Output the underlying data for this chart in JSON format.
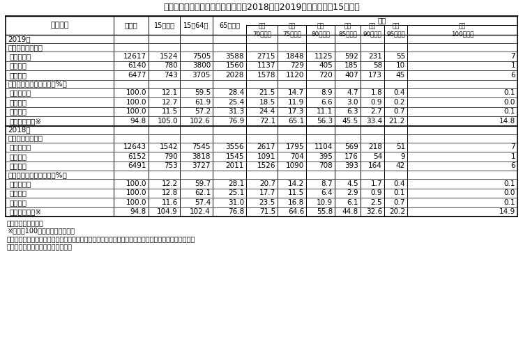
{
  "title": "表１　年齢３区分別人口及び割合（2018年、2019年）－　９月15日現在",
  "bg_color": "#ffffff",
  "text_color": "#000000",
  "sections": [
    {
      "year_label": "2019年",
      "jinkou_rows": [
        {
          "label": "　男女計",
          "values": [
            "12617",
            "1524",
            "7505",
            "3588",
            "2715",
            "1848",
            "1125",
            "592",
            "231",
            "55",
            "7"
          ]
        },
        {
          "label": "　　男",
          "values": [
            "6140",
            "780",
            "3800",
            "1560",
            "1137",
            "729",
            "405",
            "185",
            "58",
            "10",
            "1"
          ]
        },
        {
          "label": "　　女",
          "values": [
            "6477",
            "743",
            "3705",
            "2028",
            "1578",
            "1120",
            "720",
            "407",
            "173",
            "45",
            "6"
          ]
        }
      ],
      "wariai_rows": [
        {
          "label": "　男女計",
          "values": [
            "100.0",
            "12.1",
            "59.5",
            "28.4",
            "21.5",
            "14.7",
            "8.9",
            "4.7",
            "1.8",
            "0.4",
            "0.1"
          ]
        },
        {
          "label": "　　男",
          "values": [
            "100.0",
            "12.7",
            "61.9",
            "25.4",
            "18.5",
            "11.9",
            "6.6",
            "3.0",
            "0.9",
            "0.2",
            "0.0"
          ]
        },
        {
          "label": "　　女",
          "values": [
            "100.0",
            "11.5",
            "57.2",
            "31.3",
            "24.4",
            "17.3",
            "11.1",
            "6.3",
            "2.7",
            "0.7",
            "0.1"
          ]
        }
      ],
      "jinko_ratio": {
        "label": "人口性比　※",
        "values": [
          "94.8",
          "105.0",
          "102.6",
          "76.9",
          "72.1",
          "65.1",
          "56.3",
          "45.5",
          "33.4",
          "21.2",
          "14.8"
        ]
      }
    },
    {
      "year_label": "2018年",
      "jinkou_rows": [
        {
          "label": "　男女計",
          "values": [
            "12643",
            "1542",
            "7545",
            "3556",
            "2617",
            "1795",
            "1104",
            "569",
            "218",
            "51",
            "7"
          ]
        },
        {
          "label": "　　男",
          "values": [
            "6152",
            "790",
            "3818",
            "1545",
            "1091",
            "704",
            "395",
            "176",
            "54",
            "9",
            "1"
          ]
        },
        {
          "label": "　　女",
          "values": [
            "6491",
            "753",
            "3727",
            "2011",
            "1526",
            "1090",
            "708",
            "393",
            "164",
            "42",
            "6"
          ]
        }
      ],
      "wariai_rows": [
        {
          "label": "　男女計",
          "values": [
            "100.0",
            "12.2",
            "59.7",
            "28.1",
            "20.7",
            "14.2",
            "8.7",
            "4.5",
            "1.7",
            "0.4",
            "0.1"
          ]
        },
        {
          "label": "　　男",
          "values": [
            "100.0",
            "12.8",
            "62.1",
            "25.1",
            "17.7",
            "11.5",
            "6.4",
            "2.9",
            "0.9",
            "0.1",
            "0.0"
          ]
        },
        {
          "label": "　　女",
          "values": [
            "100.0",
            "11.6",
            "57.4",
            "31.0",
            "23.5",
            "16.8",
            "10.9",
            "6.1",
            "2.5",
            "0.7",
            "0.1"
          ]
        }
      ],
      "jinko_ratio": {
        "label": "人口性比　※",
        "values": [
          "94.8",
          "104.9",
          "102.4",
          "76.8",
          "71.5",
          "64.6",
          "55.8",
          "44.8",
          "32.6",
          "20.2",
          "14.9"
        ]
      }
    }
  ],
  "footnotes": [
    "資料：「人口推計」",
    "※）女性100人に対する男性の数",
    "注）表中の数値は、単位未満を四捨五入しているため、合計の数値と内訳の計が一致しない場合がある",
    "　（以下この章において同じ。）。"
  ]
}
